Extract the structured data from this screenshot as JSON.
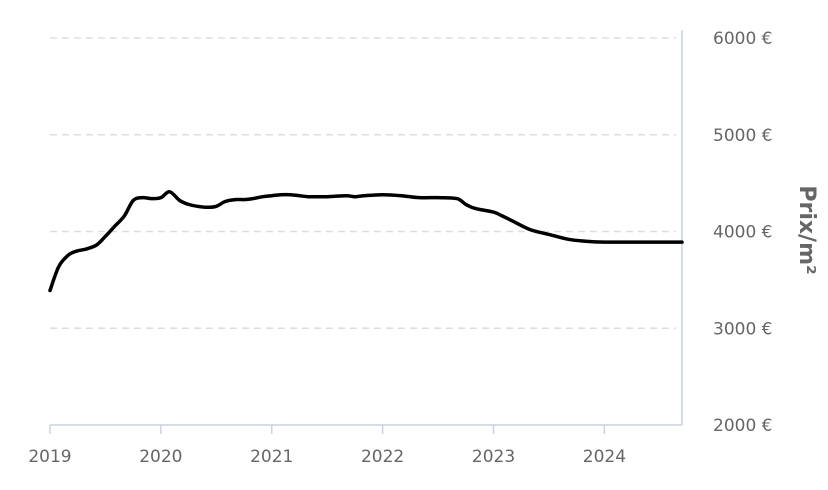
{
  "chart_data": {
    "type": "line",
    "title": "",
    "xlabel": "",
    "ylabel": "Prix/m²",
    "y_axis_position": "right",
    "grid": "horizontal dashed",
    "ylim": [
      2000,
      6000
    ],
    "xlim": [
      2019.0,
      2024.7
    ],
    "y_ticks": [
      2000,
      3000,
      4000,
      5000,
      6000
    ],
    "y_tick_labels": [
      "2000 €",
      "3000 €",
      "4000 €",
      "5000 €",
      "6000 €"
    ],
    "x_ticks": [
      2019,
      2020,
      2021,
      2022,
      2023,
      2024
    ],
    "x_tick_labels": [
      "2019",
      "2020",
      "2021",
      "2022",
      "2023",
      "2024"
    ],
    "series": [
      {
        "color": "#000000",
        "x": [
          2019.0,
          2019.08,
          2019.17,
          2019.25,
          2019.33,
          2019.42,
          2019.5,
          2019.58,
          2019.67,
          2019.75,
          2019.83,
          2019.92,
          2020.0,
          2020.08,
          2020.17,
          2020.25,
          2020.33,
          2020.42,
          2020.5,
          2020.58,
          2020.67,
          2020.75,
          2020.83,
          2020.92,
          2021.0,
          2021.08,
          2021.17,
          2021.25,
          2021.33,
          2021.5,
          2021.67,
          2021.75,
          2021.83,
          2022.0,
          2022.17,
          2022.33,
          2022.5,
          2022.67,
          2022.75,
          2022.83,
          2023.0,
          2023.08,
          2023.17,
          2023.33,
          2023.5,
          2023.67,
          2023.83,
          2024.0,
          2024.17,
          2024.33,
          2024.5,
          2024.7
        ],
        "y": [
          3390,
          3640,
          3760,
          3800,
          3820,
          3860,
          3950,
          4050,
          4160,
          4320,
          4350,
          4340,
          4350,
          4410,
          4320,
          4280,
          4260,
          4250,
          4260,
          4310,
          4330,
          4330,
          4340,
          4360,
          4370,
          4380,
          4380,
          4370,
          4360,
          4360,
          4370,
          4360,
          4370,
          4380,
          4370,
          4350,
          4350,
          4340,
          4280,
          4240,
          4200,
          4160,
          4110,
          4020,
          3970,
          3920,
          3900,
          3890,
          3890,
          3890,
          3890,
          3890
        ]
      }
    ]
  }
}
